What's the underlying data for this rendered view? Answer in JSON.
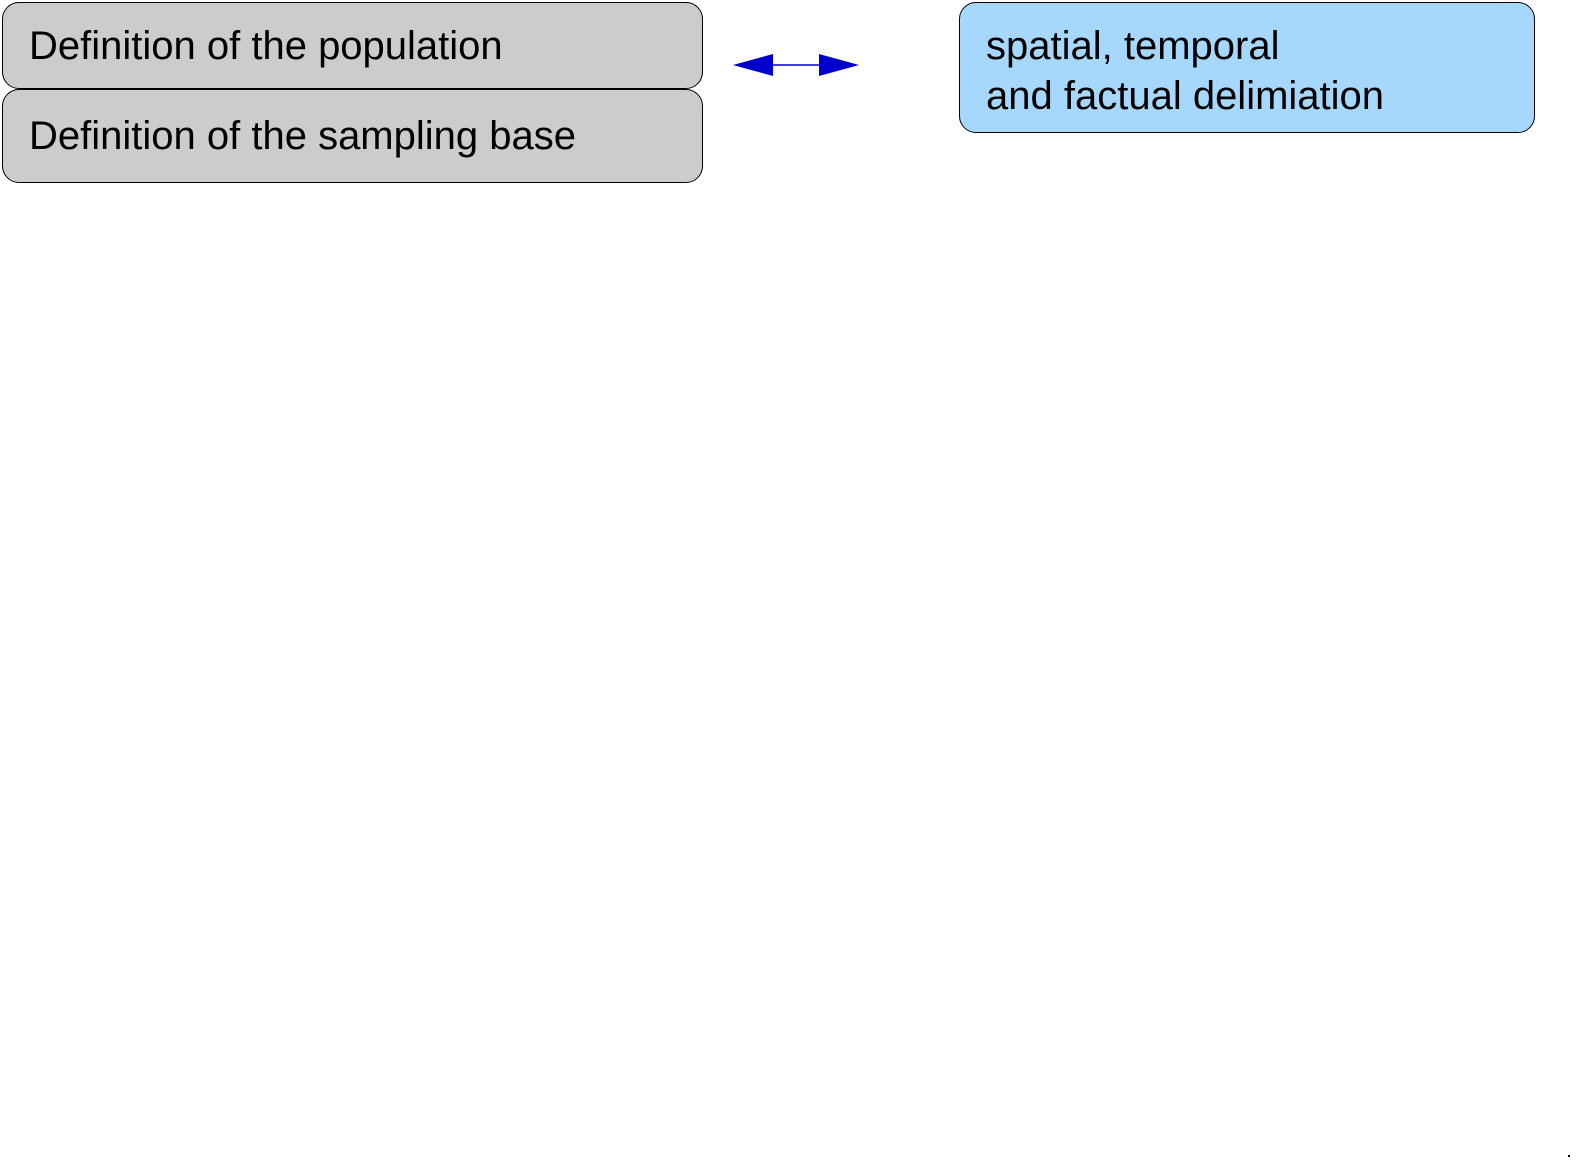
{
  "boxes": {
    "population": "Definition of the population",
    "sampling_base": "Definition of the sampling base",
    "delimitation": {
      "line1": "spatial, temporal",
      "line2": "and factual delimiation"
    }
  },
  "colors": {
    "gray_box_fill": "#cccccc",
    "blue_box_fill": "#a6d8fe",
    "arrow": "#0000cc",
    "border": "#000000"
  }
}
